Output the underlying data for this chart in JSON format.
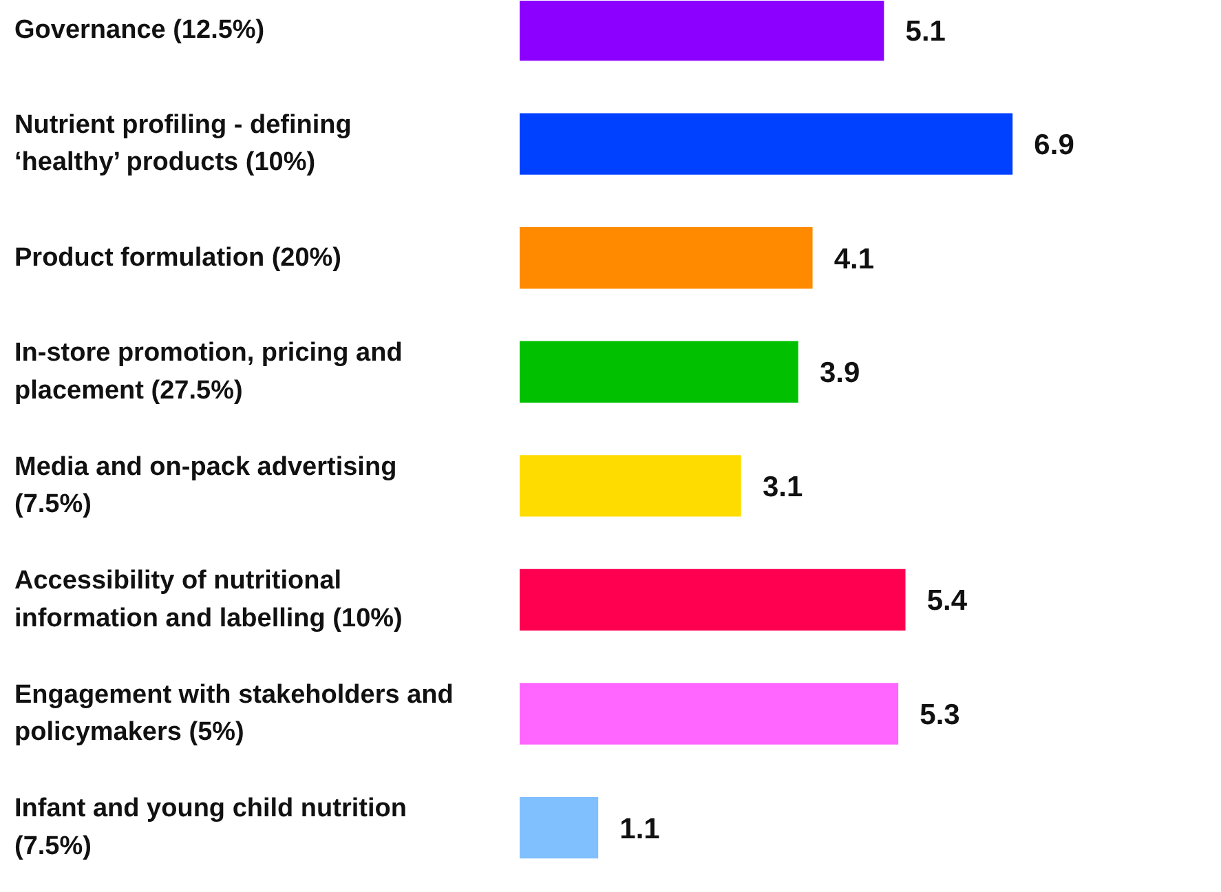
{
  "chart_data": {
    "type": "bar",
    "orientation": "horizontal",
    "data_labels": true,
    "grid": false,
    "categories": [
      "Governance (12.5%)",
      "Nutrient profiling - defining ‘healthy’ products (10%)",
      "Product formulation (20%)",
      "In-store promotion, pricing and placement (27.5%)",
      "Media and on-pack advertising (7.5%)",
      "Accessibility of nutritional information and labelling (10%)",
      "Engagement with stakeholders and policymakers (5%)",
      "Infant and young child nutrition (7.5%)"
    ],
    "values": [
      5.1,
      6.9,
      4.1,
      3.9,
      3.1,
      5.4,
      5.3,
      1.1
    ],
    "colors": [
      "#8c00ff",
      "#0040ff",
      "#ff8a00",
      "#00c000",
      "#ffdc00",
      "#ff0050",
      "#ff66ff",
      "#80c0ff"
    ]
  }
}
